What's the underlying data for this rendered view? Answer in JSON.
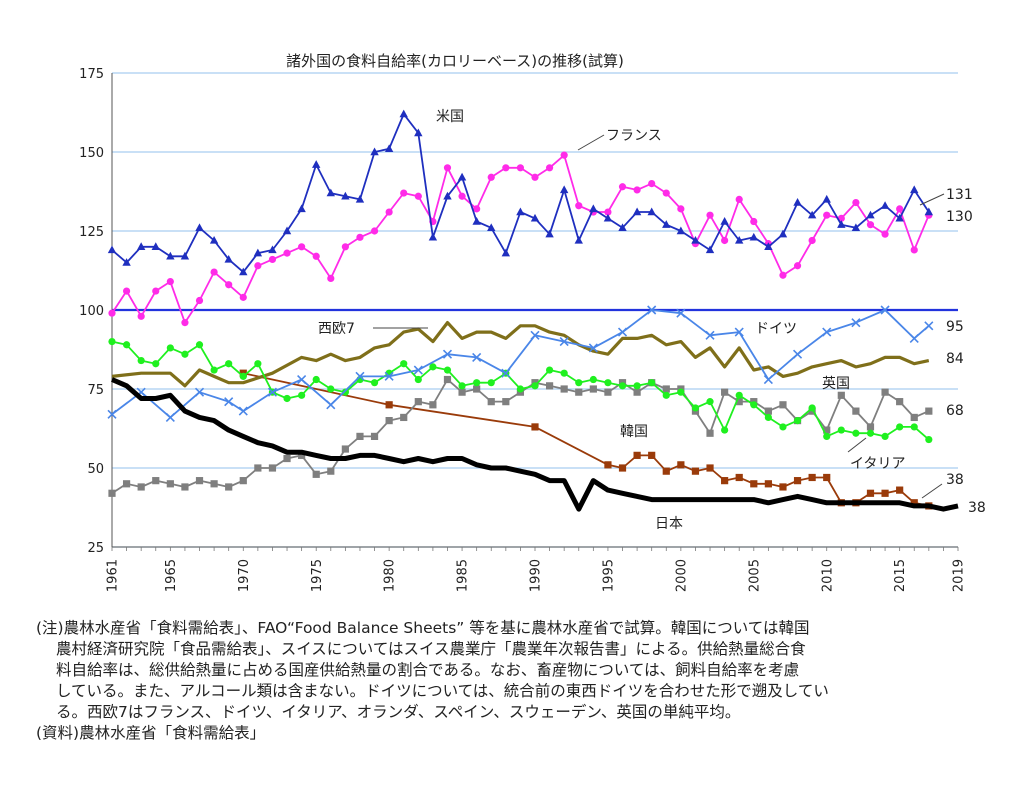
{
  "chart_data": {
    "type": "line",
    "title": "諸外国の食料自給率(カロリーベース)の推移(試算)",
    "xlabel": "",
    "ylabel": "",
    "xlim": [
      1961,
      2019
    ],
    "ylim": [
      25,
      175
    ],
    "yticks": [
      25,
      50,
      75,
      100,
      125,
      150,
      175
    ],
    "xticks": [
      1961,
      1965,
      1970,
      1975,
      1980,
      1985,
      1990,
      1995,
      2000,
      2005,
      2010,
      2015,
      2019
    ],
    "reference_line": 100,
    "grid": "horizontal",
    "series": [
      {
        "name": "米国",
        "color": "#1f2fbf",
        "marker": "triangle",
        "end_label": "131",
        "x": [
          1961,
          1962,
          1963,
          1964,
          1965,
          1966,
          1967,
          1968,
          1969,
          1970,
          1971,
          1972,
          1973,
          1974,
          1975,
          1976,
          1977,
          1978,
          1979,
          1980,
          1981,
          1982,
          1983,
          1984,
          1985,
          1986,
          1987,
          1988,
          1989,
          1990,
          1991,
          1992,
          1993,
          1994,
          1995,
          1996,
          1997,
          1998,
          1999,
          2000,
          2001,
          2002,
          2003,
          2004,
          2005,
          2006,
          2007,
          2008,
          2009,
          2010,
          2011,
          2012,
          2013,
          2014,
          2015,
          2016,
          2017
        ],
        "y": [
          119,
          115,
          120,
          120,
          117,
          117,
          126,
          122,
          116,
          112,
          118,
          119,
          125,
          132,
          146,
          137,
          136,
          135,
          150,
          151,
          162,
          156,
          123,
          136,
          142,
          128,
          126,
          118,
          131,
          129,
          124,
          138,
          122,
          132,
          129,
          126,
          131,
          131,
          127,
          125,
          122,
          119,
          128,
          122,
          123,
          120,
          124,
          134,
          130,
          135,
          127,
          126,
          130,
          133,
          129,
          138,
          131
        ]
      },
      {
        "name": "フランス",
        "color": "#ff2be8",
        "marker": "circle",
        "end_label": "130",
        "x": [
          1961,
          1962,
          1963,
          1964,
          1965,
          1966,
          1967,
          1968,
          1969,
          1970,
          1971,
          1972,
          1973,
          1974,
          1975,
          1976,
          1977,
          1978,
          1979,
          1980,
          1981,
          1982,
          1983,
          1984,
          1985,
          1986,
          1987,
          1988,
          1989,
          1990,
          1991,
          1992,
          1993,
          1994,
          1995,
          1996,
          1997,
          1998,
          1999,
          2000,
          2001,
          2002,
          2003,
          2004,
          2005,
          2006,
          2007,
          2008,
          2009,
          2010,
          2011,
          2012,
          2013,
          2014,
          2015,
          2016,
          2017
        ],
        "y": [
          99,
          106,
          98,
          106,
          109,
          96,
          103,
          112,
          108,
          104,
          114,
          116,
          118,
          120,
          117,
          110,
          120,
          123,
          125,
          131,
          137,
          136,
          128,
          145,
          136,
          132,
          142,
          145,
          145,
          142,
          145,
          149,
          133,
          131,
          131,
          139,
          138,
          140,
          137,
          132,
          121,
          130,
          122,
          135,
          128,
          121,
          111,
          114,
          122,
          130,
          129,
          134,
          127,
          124,
          132,
          119,
          130
        ]
      },
      {
        "name": "ドイツ",
        "color": "#4a86e8",
        "marker": "x",
        "end_label": "95",
        "x": [
          1961,
          1963,
          1965,
          1967,
          1969,
          1970,
          1972,
          1974,
          1976,
          1978,
          1980,
          1982,
          1984,
          1986,
          1988,
          1990,
          1992,
          1994,
          1996,
          1998,
          2000,
          2002,
          2004,
          2006,
          2008,
          2010,
          2012,
          2014,
          2016,
          2017
        ],
        "y": [
          67,
          74,
          66,
          74,
          71,
          68,
          74,
          78,
          70,
          79,
          79,
          81,
          86,
          85,
          80,
          92,
          90,
          88,
          93,
          100,
          99,
          92,
          93,
          78,
          86,
          93,
          96,
          100,
          91,
          95
        ]
      },
      {
        "name": "西欧7",
        "color": "#7f6f1a",
        "marker": "none",
        "end_label": "84",
        "x": [
          1961,
          1963,
          1965,
          1966,
          1967,
          1968,
          1969,
          1970,
          1972,
          1974,
          1975,
          1976,
          1977,
          1978,
          1979,
          1980,
          1981,
          1982,
          1983,
          1984,
          1985,
          1986,
          1987,
          1988,
          1989,
          1990,
          1991,
          1992,
          1993,
          1994,
          1995,
          1996,
          1997,
          1998,
          1999,
          2000,
          2001,
          2002,
          2003,
          2004,
          2005,
          2006,
          2007,
          2008,
          2009,
          2010,
          2011,
          2012,
          2013,
          2014,
          2015,
          2016,
          2017
        ],
        "y": [
          79,
          80,
          80,
          76,
          81,
          79,
          77,
          77,
          80,
          85,
          84,
          86,
          84,
          85,
          88,
          89,
          93,
          94,
          90,
          96,
          91,
          93,
          93,
          91,
          95,
          95,
          93,
          92,
          89,
          87,
          86,
          91,
          91,
          92,
          89,
          90,
          85,
          88,
          82,
          88,
          81,
          82,
          79,
          80,
          82,
          83,
          84,
          82,
          83,
          85,
          85,
          83,
          84
        ]
      },
      {
        "name": "英国",
        "color": "#1ff01f",
        "marker": "circle",
        "end_label": "",
        "x": [
          1961,
          1962,
          1963,
          1964,
          1965,
          1966,
          1967,
          1968,
          1969,
          1970,
          1971,
          1972,
          1973,
          1974,
          1975,
          1976,
          1977,
          1978,
          1979,
          1980,
          1981,
          1982,
          1983,
          1984,
          1985,
          1986,
          1987,
          1988,
          1989,
          1990,
          1991,
          1992,
          1993,
          1994,
          1995,
          1996,
          1997,
          1998,
          1999,
          2000,
          2001,
          2002,
          2003,
          2004,
          2005,
          2006,
          2007,
          2008,
          2009,
          2010,
          2011,
          2012,
          2013,
          2014,
          2015,
          2016,
          2017
        ],
        "y": [
          90,
          89,
          84,
          83,
          88,
          86,
          89,
          81,
          83,
          79,
          83,
          74,
          72,
          73,
          78,
          75,
          74,
          78,
          77,
          80,
          83,
          78,
          82,
          81,
          76,
          77,
          77,
          80,
          75,
          76,
          81,
          80,
          77,
          78,
          77,
          76,
          76,
          77,
          73,
          74,
          69,
          71,
          62,
          73,
          70,
          66,
          63,
          65,
          69,
          60,
          62,
          61,
          61,
          60,
          63,
          63,
          59
        ]
      },
      {
        "name": "",
        "color": "#7f7f7f",
        "marker": "square",
        "end_label": "68",
        "x": [
          1961,
          1962,
          1963,
          1964,
          1965,
          1966,
          1967,
          1968,
          1969,
          1970,
          1971,
          1972,
          1973,
          1974,
          1975,
          1976,
          1977,
          1978,
          1979,
          1980,
          1981,
          1982,
          1983,
          1984,
          1985,
          1986,
          1987,
          1988,
          1989,
          1990,
          1991,
          1992,
          1993,
          1994,
          1995,
          1996,
          1997,
          1998,
          1999,
          2000,
          2001,
          2002,
          2003,
          2004,
          2005,
          2006,
          2007,
          2008,
          2009,
          2010,
          2011,
          2012,
          2013,
          2014,
          2015,
          2016,
          2017
        ],
        "y": [
          42,
          45,
          44,
          46,
          45,
          44,
          46,
          45,
          44,
          46,
          50,
          50,
          53,
          54,
          48,
          49,
          56,
          60,
          60,
          65,
          66,
          71,
          70,
          78,
          74,
          75,
          71,
          71,
          74,
          77,
          76,
          75,
          74,
          75,
          74,
          77,
          74,
          77,
          75,
          75,
          68,
          61,
          74,
          71,
          71,
          68,
          70,
          65,
          68,
          62,
          73,
          68,
          63,
          74,
          71,
          66,
          68
        ]
      },
      {
        "name": "韓国",
        "color": "#9a3b0a",
        "marker": "square",
        "end_label": "38",
        "x": [
          1970,
          1980,
          1990,
          1995,
          1996,
          1997,
          1998,
          1999,
          2000,
          2001,
          2002,
          2003,
          2004,
          2005,
          2006,
          2007,
          2008,
          2009,
          2010,
          2011,
          2012,
          2013,
          2014,
          2015,
          2016,
          2017
        ],
        "y": [
          80,
          70,
          63,
          51,
          50,
          54,
          54,
          49,
          51,
          49,
          50,
          46,
          47,
          45,
          45,
          44,
          46,
          47,
          47,
          39,
          39,
          42,
          42,
          43,
          39,
          38
        ]
      },
      {
        "name": "日本",
        "color": "#000000",
        "marker": "none",
        "end_label": "38",
        "x": [
          1961,
          1962,
          1963,
          1964,
          1965,
          1966,
          1967,
          1968,
          1969,
          1970,
          1971,
          1972,
          1973,
          1974,
          1975,
          1976,
          1977,
          1978,
          1979,
          1980,
          1981,
          1982,
          1983,
          1984,
          1985,
          1986,
          1987,
          1988,
          1989,
          1990,
          1991,
          1992,
          1993,
          1994,
          1995,
          1996,
          1997,
          1998,
          1999,
          2000,
          2001,
          2002,
          2003,
          2004,
          2005,
          2006,
          2007,
          2008,
          2009,
          2010,
          2011,
          2012,
          2013,
          2014,
          2015,
          2016,
          2017,
          2018,
          2019
        ],
        "y": [
          78,
          76,
          72,
          72,
          73,
          68,
          66,
          65,
          62,
          60,
          58,
          57,
          55,
          55,
          54,
          53,
          53,
          54,
          54,
          53,
          52,
          53,
          52,
          53,
          53,
          51,
          50,
          50,
          49,
          48,
          46,
          46,
          37,
          46,
          43,
          42,
          41,
          40,
          40,
          40,
          40,
          40,
          40,
          40,
          40,
          39,
          40,
          41,
          40,
          39,
          39,
          39,
          39,
          39,
          39,
          38,
          38,
          37,
          38
        ]
      }
    ]
  },
  "labels": {
    "us": "米国",
    "france": "フランス",
    "germany": "ドイツ",
    "we7": "西欧7",
    "uk": "英国",
    "korea": "韓国",
    "italy": "イタリア",
    "japan": "日本"
  },
  "notes": {
    "line1": "(注)農林水産省「食料需給表」、FAO“Food Balance Sheets” 等を基に農林水産省で試算。韓国については韓国",
    "line2": "農村経済研究院「食品需給表」、スイスについてはスイス農業庁「農業年次報告書」による。供給熱量総合食",
    "line3": "料自給率は、総供給熱量に占める国産供給熱量の割合である。なお、畜産物については、飼料自給率を考慮",
    "line4": "している。また、アルコール類は含まない。ドイツについては、統合前の東西ドイツを合わせた形で遡及してい",
    "line5": "る。西欧7はフランス、ドイツ、イタリア、オランダ、スペイン、スウェーデン、英国の単純平均。",
    "source": "(資料)農林水産省「食料需給表」"
  }
}
